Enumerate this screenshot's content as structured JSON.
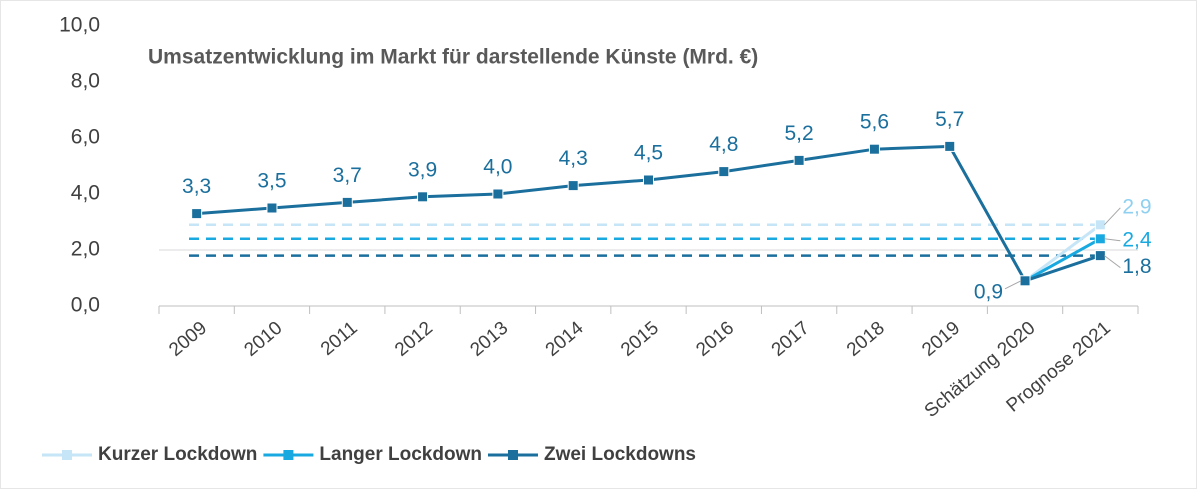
{
  "chart_data": {
    "type": "line",
    "title": "Umsatzentwicklung im Markt für darstellende Künste (Mrd. €)",
    "categories": [
      "2009",
      "2010",
      "2011",
      "2012",
      "2013",
      "2014",
      "2015",
      "2016",
      "2017",
      "2018",
      "2019",
      "Schätzung 2020",
      "Prognose 2021"
    ],
    "series": [
      {
        "name": "Kurzer Lockdown",
        "color": "#c6e6f7",
        "values": [
          null,
          null,
          null,
          null,
          null,
          null,
          null,
          null,
          null,
          null,
          null,
          0.9,
          2.9
        ],
        "value_labels": [
          null,
          null,
          null,
          null,
          null,
          null,
          null,
          null,
          null,
          null,
          null,
          null,
          "2,9"
        ]
      },
      {
        "name": "Langer Lockdown",
        "color": "#19a9e1",
        "values": [
          null,
          null,
          null,
          null,
          null,
          null,
          null,
          null,
          null,
          null,
          null,
          0.9,
          2.4
        ],
        "value_labels": [
          null,
          null,
          null,
          null,
          null,
          null,
          null,
          null,
          null,
          null,
          null,
          null,
          "2,4"
        ]
      },
      {
        "name": "Zwei Lockdowns",
        "color": "#1b6f9d",
        "values": [
          3.3,
          3.5,
          3.7,
          3.9,
          4.0,
          4.3,
          4.5,
          4.8,
          5.2,
          5.6,
          5.7,
          0.9,
          1.8
        ],
        "value_labels": [
          "3,3",
          "3,5",
          "3,7",
          "3,9",
          "4,0",
          "4,3",
          "4,5",
          "4,8",
          "5,2",
          "5,6",
          "5,7",
          "0,9",
          "1,8"
        ]
      }
    ],
    "ylim": [
      0,
      10
    ],
    "yticks": [
      {
        "value": 0,
        "label": "0,0"
      },
      {
        "value": 2,
        "label": "2,0"
      },
      {
        "value": 4,
        "label": "4,0"
      },
      {
        "value": 6,
        "label": "6,0"
      },
      {
        "value": 8,
        "label": "8,0"
      },
      {
        "value": 10,
        "label": "10,0"
      }
    ],
    "legend": "bottom-left"
  }
}
